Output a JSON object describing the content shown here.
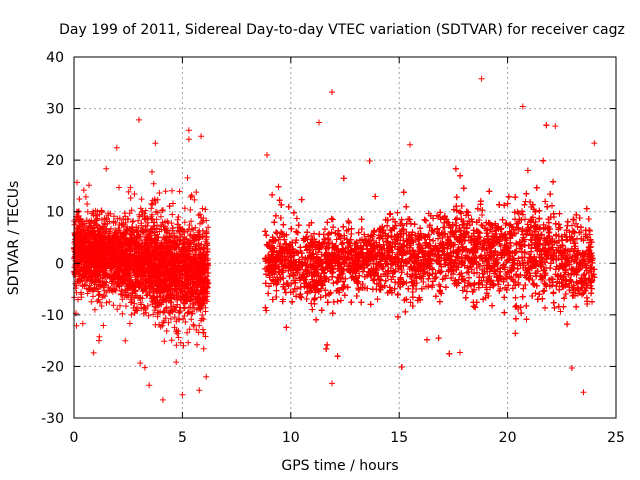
{
  "chart_data": {
    "type": "scatter",
    "title": "Day 199 of 2011, Sidereal Day-to-day VTEC variation (SDTVAR) for receiver cagz",
    "xlabel": "GPS time / hours",
    "ylabel": "SDTVAR / TECUs",
    "xlim": [
      0,
      25
    ],
    "ylim": [
      -30,
      40
    ],
    "xticks": [
      0,
      5,
      10,
      15,
      20,
      25
    ],
    "yticks": [
      -30,
      -20,
      -10,
      0,
      10,
      20,
      30,
      40
    ],
    "grid": true,
    "marker": "plus",
    "color": "#ff0000",
    "data_gap_hours": [
      6.2,
      8.8
    ],
    "segments": [
      {
        "x_start": 0.0,
        "x_end": 6.2,
        "mean": [
          [
            0,
            2.5
          ],
          [
            1,
            1.5
          ],
          [
            2,
            1.0
          ],
          [
            3,
            0.5
          ],
          [
            4,
            -0.5
          ],
          [
            5,
            -1.5
          ],
          [
            6.2,
            -2.0
          ]
        ],
        "spread": [
          [
            0,
            4.5
          ],
          [
            1,
            4.5
          ],
          [
            2,
            4.5
          ],
          [
            3,
            5.5
          ],
          [
            4,
            6.0
          ],
          [
            5,
            6.5
          ],
          [
            6.2,
            6.0
          ]
        ]
      },
      {
        "x_start": 8.8,
        "x_end": 24.0,
        "mean": [
          [
            8.8,
            0.5
          ],
          [
            10,
            0.0
          ],
          [
            11,
            -0.5
          ],
          [
            12,
            0.0
          ],
          [
            13,
            0.5
          ],
          [
            14,
            1.0
          ],
          [
            15,
            1.5
          ],
          [
            16,
            1.0
          ],
          [
            17,
            2.0
          ],
          [
            18,
            3.0
          ],
          [
            19,
            2.0
          ],
          [
            20,
            1.5
          ],
          [
            21,
            3.0
          ],
          [
            22,
            2.0
          ],
          [
            23,
            0.0
          ],
          [
            24,
            -1.0
          ]
        ],
        "spread": [
          [
            8.8,
            4.5
          ],
          [
            10,
            4.0
          ],
          [
            11,
            4.5
          ],
          [
            12,
            4.5
          ],
          [
            13,
            4.0
          ],
          [
            14,
            4.0
          ],
          [
            15,
            5.5
          ],
          [
            16,
            4.5
          ],
          [
            17,
            4.5
          ],
          [
            18,
            5.5
          ],
          [
            19,
            5.0
          ],
          [
            20,
            5.0
          ],
          [
            21,
            6.5
          ],
          [
            22,
            6.0
          ],
          [
            23,
            5.5
          ],
          [
            24,
            5.5
          ]
        ]
      }
    ],
    "notable_points": [
      {
        "x": 18.8,
        "y": 35.8
      },
      {
        "x": 11.9,
        "y": 33.2
      },
      {
        "x": 20.7,
        "y": 30.4
      },
      {
        "x": 3.0,
        "y": 27.8
      },
      {
        "x": 11.3,
        "y": 27.3
      },
      {
        "x": 5.3,
        "y": 25.8
      },
      {
        "x": 4.1,
        "y": -26.5
      },
      {
        "x": 5.0,
        "y": -25.5
      },
      {
        "x": 11.9,
        "y": -23.3
      },
      {
        "x": 23.5,
        "y": -25.0
      },
      {
        "x": 6.1,
        "y": -22.0
      },
      {
        "x": 8.9,
        "y": 21.0
      },
      {
        "x": 15.5,
        "y": 23.0
      },
      {
        "x": 24.0,
        "y": 23.3
      },
      {
        "x": 22.2,
        "y": 26.6
      },
      {
        "x": 17.8,
        "y": -17.3
      }
    ]
  }
}
